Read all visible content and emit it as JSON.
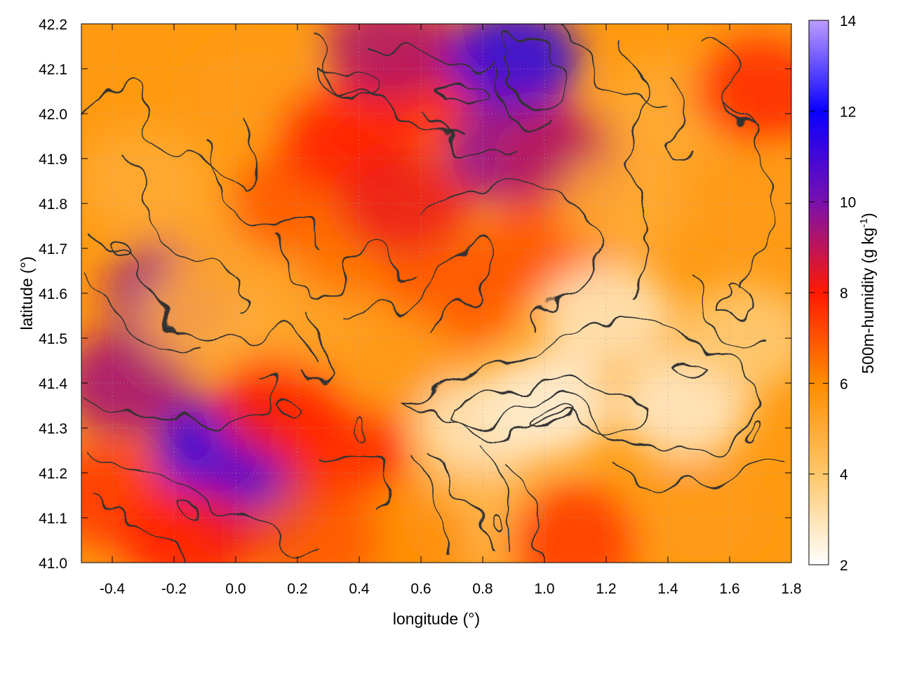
{
  "chart_data": {
    "type": "heatmap",
    "title": "",
    "xlabel": "longitude (°)",
    "ylabel": "latitude (°)",
    "xlim": [
      -0.5,
      1.8
    ],
    "ylim": [
      41.0,
      42.2
    ],
    "x_ticks": [
      "-0.4",
      "-0.2",
      "0.0",
      "0.2",
      "0.4",
      "0.6",
      "0.8",
      "1.0",
      "1.2",
      "1.4",
      "1.6",
      "1.8"
    ],
    "y_ticks": [
      "41.0",
      "41.1",
      "41.2",
      "41.3",
      "41.4",
      "41.5",
      "41.6",
      "41.7",
      "41.8",
      "41.9",
      "42.0",
      "42.1",
      "42.2"
    ],
    "grid": true,
    "colorbar": {
      "label_main": "500m-humidity (g kg",
      "label_sup": "-1",
      "label_close": ")",
      "range": [
        2,
        14
      ],
      "ticks": [
        "2",
        "4",
        "6",
        "8",
        "10",
        "12",
        "14"
      ],
      "palette": [
        {
          "value": 2,
          "color": "#ffffff"
        },
        {
          "value": 4,
          "color": "#ffc76a"
        },
        {
          "value": 6,
          "color": "#ff8c00"
        },
        {
          "value": 8,
          "color": "#ff1a00"
        },
        {
          "value": 10,
          "color": "#7a10b0"
        },
        {
          "value": 12,
          "color": "#0a00ff"
        },
        {
          "value": 14,
          "color": "#bb9cff"
        }
      ]
    },
    "regions": [
      {
        "lon": -0.35,
        "lat": 41.4,
        "value": 9.4
      },
      {
        "lon": -0.4,
        "lat": 41.15,
        "value": 7.6
      },
      {
        "lon": -0.2,
        "lat": 41.6,
        "value": 9.6
      },
      {
        "lon": -0.05,
        "lat": 41.25,
        "value": 11.5
      },
      {
        "lon": 0.05,
        "lat": 41.15,
        "value": 10.5
      },
      {
        "lon": 0.15,
        "lat": 41.35,
        "value": 8.0
      },
      {
        "lon": 0.35,
        "lat": 41.25,
        "value": 7.8
      },
      {
        "lon": 0.25,
        "lat": 41.55,
        "value": 5.2
      },
      {
        "lon": -0.1,
        "lat": 41.55,
        "value": 4.8
      },
      {
        "lon": -0.3,
        "lat": 41.85,
        "value": 5.0
      },
      {
        "lon": 0.0,
        "lat": 41.7,
        "value": 5.2
      },
      {
        "lon": 0.05,
        "lat": 42.05,
        "value": 5.5
      },
      {
        "lon": 0.2,
        "lat": 41.8,
        "value": 7.0
      },
      {
        "lon": 0.35,
        "lat": 41.95,
        "value": 8.0
      },
      {
        "lon": 0.4,
        "lat": 41.7,
        "value": 6.5
      },
      {
        "lon": 0.55,
        "lat": 41.8,
        "value": 8.3
      },
      {
        "lon": 0.7,
        "lat": 41.6,
        "value": 7.0
      },
      {
        "lon": 0.5,
        "lat": 41.45,
        "value": 5.5
      },
      {
        "lon": 0.6,
        "lat": 42.05,
        "value": 7.8
      },
      {
        "lon": 0.5,
        "lat": 42.15,
        "value": 9.2
      },
      {
        "lon": 0.9,
        "lat": 42.12,
        "value": 11.5
      },
      {
        "lon": 0.9,
        "lat": 41.92,
        "value": 9.8
      },
      {
        "lon": 1.05,
        "lat": 41.9,
        "value": 9.0
      },
      {
        "lon": 1.0,
        "lat": 41.7,
        "value": 7.0
      },
      {
        "lon": 1.25,
        "lat": 41.8,
        "value": 5.0
      },
      {
        "lon": 1.4,
        "lat": 42.0,
        "value": 5.0
      },
      {
        "lon": 1.7,
        "lat": 42.05,
        "value": 7.8
      },
      {
        "lon": 1.65,
        "lat": 41.8,
        "value": 5.5
      },
      {
        "lon": 1.2,
        "lat": 41.55,
        "value": 2.8
      },
      {
        "lon": 1.0,
        "lat": 41.35,
        "value": 2.3
      },
      {
        "lon": 0.8,
        "lat": 41.3,
        "value": 2.8
      },
      {
        "lon": 1.45,
        "lat": 41.35,
        "value": 2.6
      },
      {
        "lon": 1.65,
        "lat": 41.5,
        "value": 3.8
      },
      {
        "lon": 0.75,
        "lat": 41.1,
        "value": 4.5
      },
      {
        "lon": 1.1,
        "lat": 41.05,
        "value": 7.5
      },
      {
        "lon": 1.5,
        "lat": 41.1,
        "value": 5.5
      },
      {
        "lon": 0.55,
        "lat": 41.05,
        "value": 6.0
      },
      {
        "lon": 0.25,
        "lat": 41.05,
        "value": 7.0
      },
      {
        "lon": -0.15,
        "lat": 41.05,
        "value": 8.0
      }
    ]
  }
}
